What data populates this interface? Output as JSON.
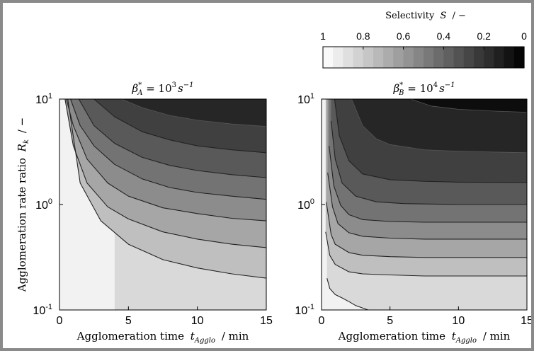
{
  "chart_data": [
    {
      "type": "heatmap",
      "subtype": "filled-contour",
      "title": "β*A = 10³ s⁻¹",
      "title_parts": {
        "base": "β",
        "sup": "*",
        "sub": "A",
        "eq": " = 10",
        "exp": "3",
        "unit": "s",
        "unit_exp": "−1"
      },
      "xlabel": "Agglomeration time t_Agglo / min",
      "ylabel": "Agglomeration rate ratio R_k / −",
      "x_ticks": [
        0,
        5,
        10,
        15
      ],
      "y_ticks": [
        {
          "base": "10",
          "exp": "-1"
        },
        {
          "base": "10",
          "exp": "0"
        },
        {
          "base": "10",
          "exp": "1"
        }
      ],
      "xlim": [
        0,
        15
      ],
      "ylim": [
        0.1,
        10
      ],
      "y_scale": "log",
      "contour_levels": [
        0.1,
        0.2,
        0.3,
        0.4,
        0.5,
        0.6,
        0.7,
        0.8,
        0.9
      ],
      "contours": [
        {
          "level": 0.9,
          "x": [
            4,
            5,
            7.5,
            10,
            12.5,
            15
          ],
          "y": [
            0.1,
            0.094,
            0.086,
            0.083,
            0.082,
            0.081
          ]
        },
        {
          "level": 0.8,
          "x": [
            0.6,
            1.5,
            3,
            5,
            7.5,
            10,
            12.5,
            15
          ],
          "y": [
            10,
            1.6,
            0.7,
            0.42,
            0.3,
            0.25,
            0.22,
            0.2
          ]
        },
        {
          "level": 0.7,
          "x": [
            0.4,
            1,
            2,
            3.5,
            5,
            7.5,
            10,
            12.5,
            15
          ],
          "y": [
            10,
            3.6,
            1.6,
            0.95,
            0.73,
            0.55,
            0.47,
            0.42,
            0.39
          ]
        },
        {
          "level": 0.6,
          "x": [
            0.5,
            1,
            2,
            3.5,
            5,
            7.5,
            10,
            12.5,
            15
          ],
          "y": [
            10,
            5.6,
            2.7,
            1.6,
            1.2,
            0.93,
            0.82,
            0.74,
            0.7
          ]
        },
        {
          "level": 0.5,
          "x": [
            0.8,
            1.5,
            2.5,
            4,
            6,
            8,
            10,
            12.5,
            15
          ],
          "y": [
            10,
            5.6,
            3.6,
            2.4,
            1.75,
            1.45,
            1.3,
            1.2,
            1.12
          ]
        },
        {
          "level": 0.4,
          "x": [
            1.4,
            2.5,
            4,
            6,
            8,
            10,
            12.5,
            15
          ],
          "y": [
            10,
            5.6,
            3.8,
            2.8,
            2.35,
            2.1,
            1.92,
            1.8
          ]
        },
        {
          "level": 0.3,
          "x": [
            2.5,
            4,
            6,
            8,
            10,
            12.5,
            15
          ],
          "y": [
            10,
            6.8,
            4.9,
            4.1,
            3.6,
            3.3,
            3.1
          ]
        },
        {
          "level": 0.2,
          "x": [
            4.5,
            6,
            8,
            10,
            12.5,
            15
          ],
          "y": [
            10,
            8.3,
            7,
            6.3,
            5.8,
            5.5
          ]
        }
      ],
      "colorscale": "white (S=1) to black (S=0)"
    },
    {
      "type": "heatmap",
      "subtype": "filled-contour",
      "title": "β*B = 10⁴ s⁻¹",
      "title_parts": {
        "base": "β",
        "sup": "*",
        "sub": "B",
        "eq": " = 10",
        "exp": "4",
        "unit": "s",
        "unit_exp": "−1"
      },
      "xlabel": "Agglomeration time t_Agglo / min",
      "ylabel": "",
      "x_ticks": [
        0,
        5,
        10,
        15
      ],
      "y_ticks": [
        {
          "base": "10",
          "exp": "-1"
        },
        {
          "base": "10",
          "exp": "0"
        },
        {
          "base": "10",
          "exp": "1"
        }
      ],
      "xlim": [
        0,
        15
      ],
      "ylim": [
        0.1,
        10
      ],
      "y_scale": "log",
      "contour_levels": [
        0.1,
        0.2,
        0.3,
        0.4,
        0.5,
        0.6,
        0.7,
        0.8,
        0.9
      ],
      "contours": [
        {
          "level": 0.9,
          "x": [
            0.4,
            0.6,
            1,
            1.5,
            2,
            2.5,
            3.4
          ],
          "y": [
            0.2,
            0.16,
            0.14,
            0.13,
            0.12,
            0.11,
            0.1
          ]
        },
        {
          "level": 0.8,
          "x": [
            0.3,
            0.6,
            1,
            2,
            3,
            5,
            7.5,
            10,
            15
          ],
          "y": [
            0.55,
            0.33,
            0.27,
            0.23,
            0.22,
            0.215,
            0.21,
            0.21,
            0.21
          ]
        },
        {
          "level": 0.7,
          "x": [
            0.35,
            0.7,
            1,
            2,
            3,
            5,
            7.5,
            10,
            15
          ],
          "y": [
            1.05,
            0.52,
            0.42,
            0.35,
            0.33,
            0.32,
            0.315,
            0.315,
            0.315
          ]
        },
        {
          "level": 0.6,
          "x": [
            0.45,
            0.8,
            1.2,
            2,
            3,
            5,
            7.5,
            10,
            15
          ],
          "y": [
            2,
            0.95,
            0.66,
            0.54,
            0.5,
            0.48,
            0.47,
            0.47,
            0.47
          ]
        },
        {
          "level": 0.5,
          "x": [
            0.55,
            0.9,
            1.4,
            2,
            3,
            5,
            7.5,
            10,
            15
          ],
          "y": [
            3.6,
            1.5,
            0.98,
            0.8,
            0.72,
            0.69,
            0.68,
            0.68,
            0.68
          ]
        },
        {
          "level": 0.4,
          "x": [
            0.7,
            1,
            1.5,
            2.5,
            4,
            6,
            10,
            15
          ],
          "y": [
            6.2,
            2.7,
            1.6,
            1.2,
            1.06,
            1.02,
            1.0,
            1.0
          ]
        },
        {
          "level": 0.3,
          "x": [
            0.95,
            1.3,
            2,
            3,
            5,
            7.5,
            10,
            15
          ],
          "y": [
            10,
            4.5,
            2.6,
            1.95,
            1.72,
            1.66,
            1.63,
            1.62
          ]
        },
        {
          "level": 0.2,
          "x": [
            2.2,
            3,
            4,
            5,
            7.5,
            10,
            12.5,
            15
          ],
          "y": [
            10,
            5.6,
            4.2,
            3.7,
            3.3,
            3.2,
            3.15,
            3.1
          ]
        },
        {
          "level": 0.1,
          "x": [
            6.5,
            8,
            10,
            12.5,
            15
          ],
          "y": [
            10,
            8.6,
            8.0,
            7.7,
            7.5
          ]
        }
      ],
      "colorscale": "white (S=1) to black (S=0)"
    }
  ],
  "colorbar": {
    "label": "Selectivity S / −",
    "ticks": [
      "1",
      "0.8",
      "0.6",
      "0.4",
      "0.2",
      "0"
    ],
    "range": [
      1,
      0
    ],
    "colors": {
      "high": "#ffffff",
      "low": "#000000"
    }
  },
  "axis_text": {
    "xlabel_main": "Agglomeration time",
    "xlabel_var": "t",
    "xlabel_sub": "Agglo",
    "xlabel_unit": "/ min",
    "ylabel_main": "Agglomeration rate ratio",
    "ylabel_var": "R",
    "ylabel_sub": "k",
    "ylabel_unit": "/ −",
    "cb_main": "Selectivity",
    "cb_var": "S",
    "cb_unit": "/ −"
  }
}
